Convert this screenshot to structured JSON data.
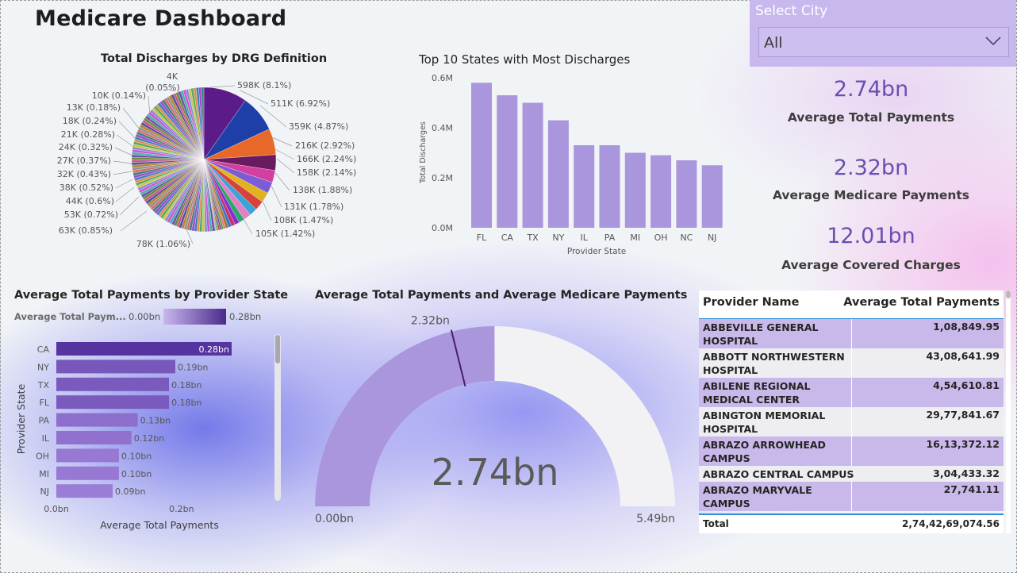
{
  "header": {
    "title": "Medicare Dashboard"
  },
  "slicer": {
    "title": "Select City",
    "selected": "All"
  },
  "kpis": [
    {
      "value": "2.74bn",
      "label": "Average Total Payments"
    },
    {
      "value": "2.32bn",
      "label": "Average Medicare Payments"
    },
    {
      "value": "12.01bn",
      "label": "Average Covered Charges"
    }
  ],
  "colors": {
    "accent": "#a996dc",
    "dark_accent": "#5b3c9a",
    "kpi": "#6a4fb0",
    "slicer": "#c8b8ee",
    "table_band": "#c9b8ea"
  },
  "chart_data": [
    {
      "id": "pie",
      "type": "pie",
      "title": "Total Discharges by DRG Definition",
      "labeled_slices": [
        {
          "label": "598K (8.1%)",
          "value": 598,
          "color": "#5b1c8a"
        },
        {
          "label": "511K (6.92%)",
          "value": 511,
          "color": "#1e3fa8"
        },
        {
          "label": "359K (4.87%)",
          "value": 359,
          "color": "#e8682a"
        },
        {
          "label": "216K (2.92%)",
          "value": 216,
          "color": "#6a1b5f"
        },
        {
          "label": "166K (2.24%)",
          "value": 166,
          "color": "#d23fa0"
        },
        {
          "label": "158K (2.14%)",
          "value": 158,
          "color": "#7b5cd6"
        },
        {
          "label": "138K (1.88%)",
          "value": 138,
          "color": "#e0b21e"
        },
        {
          "label": "131K (1.78%)",
          "value": 131,
          "color": "#d8423c"
        },
        {
          "label": "108K (1.47%)",
          "value": 108,
          "color": "#3aa3d8"
        },
        {
          "label": "105K (1.42%)",
          "value": 105,
          "color": "#e57fc4"
        },
        {
          "label": "78K (1.06%)",
          "value": 78,
          "color": "#2aa86a"
        },
        {
          "label": "63K (0.85%)",
          "value": 63,
          "color": "#8a2bd1"
        },
        {
          "label": "53K (0.72%)",
          "value": 53,
          "color": "#c4326a"
        },
        {
          "label": "44K (0.6%)",
          "value": 44,
          "color": "#3b6fd0"
        },
        {
          "label": "38K (0.52%)",
          "value": 38,
          "color": "#9a7a2a"
        },
        {
          "label": "32K (0.43%)",
          "value": 32,
          "color": "#d87a8a"
        },
        {
          "label": "27K (0.37%)",
          "value": 27,
          "color": "#5a9a3a"
        },
        {
          "label": "24K (0.32%)",
          "value": 24,
          "color": "#7a4aa0"
        },
        {
          "label": "21K (0.28%)",
          "value": 21,
          "color": "#b04a2a"
        },
        {
          "label": "18K (0.24%)",
          "value": 18,
          "color": "#4a8aa8"
        },
        {
          "label": "13K (0.18%)",
          "value": 13,
          "color": "#a0a030"
        },
        {
          "label": "10K (0.14%)",
          "value": 10,
          "color": "#808080"
        },
        {
          "label": "4K (0.05%)",
          "value": 4,
          "color": "#404040"
        }
      ]
    },
    {
      "id": "states_bar",
      "type": "bar",
      "title": "Top 10 States with Most Discharges",
      "xlabel": "Provider State",
      "ylabel": "Total Discharges",
      "categories": [
        "FL",
        "CA",
        "TX",
        "NY",
        "IL",
        "PA",
        "MI",
        "OH",
        "NC",
        "NJ"
      ],
      "values": [
        0.58,
        0.53,
        0.5,
        0.43,
        0.33,
        0.33,
        0.3,
        0.29,
        0.27,
        0.25
      ],
      "value_unit": "M",
      "ylim": [
        0,
        0.6
      ],
      "yticks": [
        "0.0M",
        "0.2M",
        "0.4M",
        "0.6M"
      ],
      "color": "#a996dc"
    },
    {
      "id": "state_hbar",
      "type": "bar",
      "orientation": "horizontal",
      "title": "Average Total Payments by Provider State",
      "legend_title": "Average Total Paym...",
      "legend_min": "0.00bn",
      "legend_max": "0.28bn",
      "ylabel": "Provider State",
      "xlabel": "Average Total Payments",
      "xticks": [
        "0.0bn",
        "0.2bn"
      ],
      "xlim": [
        0,
        0.3
      ],
      "categories": [
        "CA",
        "NY",
        "TX",
        "FL",
        "PA",
        "IL",
        "OH",
        "MI",
        "NJ"
      ],
      "values": [
        0.28,
        0.19,
        0.18,
        0.18,
        0.13,
        0.12,
        0.1,
        0.1,
        0.09
      ],
      "labels": [
        "0.28bn",
        "0.19bn",
        "0.18bn",
        "0.18bn",
        "0.13bn",
        "0.12bn",
        "0.10bn",
        "0.10bn",
        "0.09bn"
      ]
    },
    {
      "id": "gauge",
      "type": "gauge",
      "title": "Average Total Payments and Average Medicare Payments",
      "value": 2.74,
      "value_label": "2.74bn",
      "target": 2.32,
      "target_label": "2.32bn",
      "min": 0,
      "min_label": "0.00bn",
      "max": 5.49,
      "max_label": "5.49bn"
    }
  ],
  "table": {
    "columns": [
      "Provider Name",
      "Average Total Payments"
    ],
    "rows": [
      {
        "name": "ABBEVILLE GENERAL HOSPITAL",
        "value": "1,08,849.95"
      },
      {
        "name": "ABBOTT NORTHWESTERN HOSPITAL",
        "value": "43,08,641.99"
      },
      {
        "name": "ABILENE REGIONAL MEDICAL CENTER",
        "value": "4,54,610.81"
      },
      {
        "name": "ABINGTON MEMORIAL HOSPITAL",
        "value": "29,77,841.67"
      },
      {
        "name": "ABRAZO ARROWHEAD CAMPUS",
        "value": "16,13,372.12"
      },
      {
        "name": "ABRAZO CENTRAL CAMPUS",
        "value": "3,04,433.32"
      },
      {
        "name": "ABRAZO MARYVALE CAMPUS",
        "value": "27,741.11"
      }
    ],
    "total_label": "Total",
    "total_value": "2,74,42,69,074.56"
  }
}
